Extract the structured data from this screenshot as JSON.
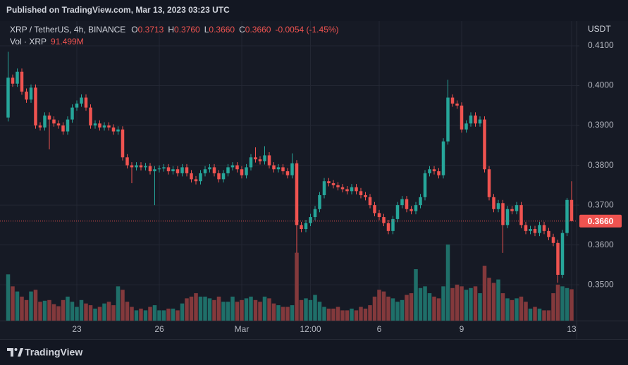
{
  "chart_data": {
    "type": "candlestick",
    "published": "Published on TradingView.com, Mar 13, 2023 03:23 UTC",
    "symbol": "XRP / TetherUS, 4h, BINANCE",
    "legend_ohlc": {
      "o_key": "O",
      "o": "0.3713",
      "h_key": "H",
      "h": "0.3760",
      "l_key": "L",
      "l": "0.3660",
      "c_key": "C",
      "c": "0.3660",
      "change": "-0.0054 (-1.45%)"
    },
    "volume_title": "Vol · XRP",
    "volume_value_label": "91.499M",
    "currency": "USDT",
    "brand": "TradingView",
    "up_color": "#26a69a",
    "down_color": "#ef5350",
    "volume_up_color": "#1f6f69",
    "volume_down_color": "#83393c",
    "grid": true,
    "categories": [
      null,
      null,
      null,
      null,
      null,
      null,
      null,
      null,
      null,
      null,
      null,
      null,
      null,
      null,
      null,
      "23",
      null,
      null,
      null,
      null,
      null,
      null,
      null,
      null,
      null,
      null,
      null,
      null,
      null,
      null,
      null,
      null,
      null,
      "26",
      null,
      null,
      null,
      null,
      null,
      null,
      null,
      null,
      null,
      null,
      null,
      null,
      null,
      null,
      null,
      null,
      null,
      "Mar",
      null,
      null,
      null,
      null,
      null,
      null,
      null,
      null,
      null,
      null,
      null,
      null,
      null,
      null,
      "12:00",
      null,
      null,
      null,
      null,
      null,
      null,
      null,
      null,
      null,
      null,
      null,
      null,
      null,
      null,
      "6",
      null,
      null,
      null,
      null,
      null,
      null,
      null,
      null,
      null,
      null,
      null,
      null,
      null,
      null,
      null,
      null,
      null,
      "9",
      null,
      null,
      null,
      null,
      null,
      null,
      null,
      null,
      null,
      null,
      null,
      null,
      null,
      null,
      null,
      null,
      null,
      null,
      null,
      null,
      null,
      null,
      null,
      "13"
    ],
    "open": [
      0.392,
      0.402,
      0.4005,
      0.4035,
      0.3985,
      0.3965,
      0.3995,
      0.39,
      0.3895,
      0.3925,
      0.3915,
      0.3905,
      0.39,
      0.3885,
      0.3915,
      0.3945,
      0.3955,
      0.397,
      0.3945,
      0.39,
      0.3905,
      0.3895,
      0.39,
      0.3895,
      0.3885,
      0.389,
      0.382,
      0.38,
      0.3795,
      0.38,
      0.3795,
      0.3798,
      0.3785,
      0.379,
      0.3792,
      0.3795,
      0.3785,
      0.379,
      0.378,
      0.3795,
      0.378,
      0.3765,
      0.376,
      0.378,
      0.379,
      0.3795,
      0.378,
      0.3765,
      0.378,
      0.3795,
      0.38,
      0.379,
      0.3775,
      0.3795,
      0.382,
      0.3815,
      0.381,
      0.3825,
      0.38,
      0.379,
      0.3795,
      0.3785,
      0.3775,
      0.3805,
      0.365,
      0.364,
      0.3655,
      0.367,
      0.369,
      0.3725,
      0.376,
      0.3755,
      0.375,
      0.3745,
      0.374,
      0.3735,
      0.3745,
      0.3735,
      0.3725,
      0.372,
      0.37,
      0.368,
      0.367,
      0.3655,
      0.3635,
      0.3665,
      0.37,
      0.3715,
      0.369,
      0.3685,
      0.37,
      0.372,
      0.378,
      0.379,
      0.3785,
      0.3775,
      0.386,
      0.397,
      0.3955,
      0.395,
      0.389,
      0.3905,
      0.3925,
      0.3905,
      0.3915,
      0.379,
      0.372,
      0.369,
      0.3705,
      0.365,
      0.369,
      0.3685,
      0.37,
      0.365,
      0.3635,
      0.364,
      0.363,
      0.365,
      0.3635,
      0.362,
      0.3605,
      0.3525,
      0.363,
      0.3713
    ],
    "high": [
      0.4085,
      0.4028,
      0.4043,
      0.4043,
      0.3993,
      0.4003,
      0.4003,
      0.3908,
      0.3933,
      0.3933,
      0.3923,
      0.3913,
      0.3908,
      0.3923,
      0.3953,
      0.3963,
      0.3978,
      0.3978,
      0.3953,
      0.3913,
      0.3913,
      0.3908,
      0.3908,
      0.3903,
      0.3898,
      0.3898,
      0.3828,
      0.3808,
      0.3808,
      0.3808,
      0.3806,
      0.3806,
      0.3798,
      0.38,
      0.3803,
      0.3803,
      0.3798,
      0.3798,
      0.3803,
      0.3803,
      0.3788,
      0.3773,
      0.3788,
      0.3798,
      0.3803,
      0.3803,
      0.3788,
      0.3788,
      0.3803,
      0.3808,
      0.3808,
      0.3798,
      0.3803,
      0.3828,
      0.3845,
      0.3823,
      0.3848,
      0.3833,
      0.3808,
      0.3803,
      0.3803,
      0.3793,
      0.383,
      0.3813,
      0.3658,
      0.3663,
      0.3678,
      0.3698,
      0.3733,
      0.3768,
      0.3768,
      0.3763,
      0.3758,
      0.3753,
      0.3748,
      0.3753,
      0.3753,
      0.3743,
      0.3733,
      0.3728,
      0.3708,
      0.3688,
      0.3678,
      0.3663,
      0.3673,
      0.3708,
      0.3723,
      0.3723,
      0.3698,
      0.3708,
      0.3728,
      0.3788,
      0.3798,
      0.3798,
      0.3793,
      0.3868,
      0.4015,
      0.3978,
      0.3963,
      0.3958,
      0.3913,
      0.3933,
      0.3933,
      0.3923,
      0.3923,
      0.3798,
      0.3728,
      0.3713,
      0.3713,
      0.3698,
      0.3698,
      0.3708,
      0.3708,
      0.3658,
      0.3648,
      0.3648,
      0.3658,
      0.3658,
      0.3643,
      0.3628,
      0.3613,
      0.3638,
      0.3718,
      0.376
    ],
    "low": [
      0.391,
      0.3997,
      0.3997,
      0.3977,
      0.3957,
      0.3957,
      0.3892,
      0.3887,
      0.3887,
      0.384,
      0.3897,
      0.3892,
      0.3877,
      0.3877,
      0.3907,
      0.3937,
      0.3947,
      0.3937,
      0.3892,
      0.3892,
      0.3887,
      0.3887,
      0.3887,
      0.3877,
      0.3877,
      0.3812,
      0.3792,
      0.3755,
      0.3787,
      0.3787,
      0.3787,
      0.3777,
      0.37,
      0.3782,
      0.3784,
      0.3777,
      0.3777,
      0.3772,
      0.3772,
      0.3772,
      0.3757,
      0.3752,
      0.3752,
      0.3772,
      0.3782,
      0.3772,
      0.3757,
      0.3757,
      0.3772,
      0.3787,
      0.3782,
      0.3767,
      0.3767,
      0.3787,
      0.3807,
      0.3802,
      0.3802,
      0.3792,
      0.3782,
      0.3782,
      0.3777,
      0.3767,
      0.3767,
      0.358,
      0.3632,
      0.3632,
      0.3647,
      0.3662,
      0.3682,
      0.3717,
      0.3747,
      0.3742,
      0.3737,
      0.3732,
      0.3727,
      0.3727,
      0.3727,
      0.3717,
      0.3712,
      0.3692,
      0.3672,
      0.3662,
      0.3647,
      0.3627,
      0.3627,
      0.3657,
      0.3692,
      0.3682,
      0.3677,
      0.3677,
      0.3692,
      0.3712,
      0.3772,
      0.3777,
      0.3767,
      0.3767,
      0.3852,
      0.3947,
      0.3942,
      0.3882,
      0.3882,
      0.3897,
      0.3897,
      0.3897,
      0.3782,
      0.3712,
      0.3682,
      0.3682,
      0.358,
      0.3642,
      0.3677,
      0.3677,
      0.3642,
      0.3627,
      0.3627,
      0.3622,
      0.3622,
      0.3627,
      0.3612,
      0.3597,
      0.3505,
      0.3517,
      0.3622,
      0.366
    ],
    "close": [
      0.402,
      0.4005,
      0.4035,
      0.3985,
      0.3965,
      0.3995,
      0.39,
      0.3895,
      0.3925,
      0.3915,
      0.3905,
      0.39,
      0.3885,
      0.3915,
      0.3945,
      0.3955,
      0.397,
      0.3945,
      0.39,
      0.3905,
      0.3895,
      0.39,
      0.3895,
      0.3885,
      0.389,
      0.382,
      0.38,
      0.3795,
      0.38,
      0.3795,
      0.3798,
      0.3785,
      0.379,
      0.3792,
      0.3795,
      0.3785,
      0.379,
      0.378,
      0.3795,
      0.378,
      0.3765,
      0.376,
      0.378,
      0.379,
      0.3795,
      0.378,
      0.3765,
      0.378,
      0.3795,
      0.38,
      0.379,
      0.3775,
      0.3795,
      0.382,
      0.3815,
      0.381,
      0.3825,
      0.38,
      0.379,
      0.3795,
      0.3785,
      0.3775,
      0.3805,
      0.365,
      0.364,
      0.3655,
      0.367,
      0.369,
      0.3725,
      0.376,
      0.3755,
      0.375,
      0.3745,
      0.374,
      0.3735,
      0.3745,
      0.3735,
      0.3725,
      0.372,
      0.37,
      0.368,
      0.367,
      0.3655,
      0.3635,
      0.3665,
      0.37,
      0.3715,
      0.369,
      0.3685,
      0.37,
      0.372,
      0.378,
      0.379,
      0.3785,
      0.3775,
      0.386,
      0.397,
      0.3955,
      0.395,
      0.389,
      0.3905,
      0.3925,
      0.3905,
      0.3915,
      0.379,
      0.372,
      0.369,
      0.3705,
      0.365,
      0.369,
      0.3685,
      0.37,
      0.365,
      0.3635,
      0.364,
      0.363,
      0.365,
      0.3635,
      0.362,
      0.3605,
      0.3525,
      0.363,
      0.3713,
      0.366
    ],
    "volume": [
      135,
      100,
      85,
      70,
      60,
      85,
      90,
      55,
      58,
      60,
      48,
      42,
      60,
      70,
      55,
      40,
      60,
      50,
      45,
      35,
      40,
      50,
      55,
      45,
      100,
      90,
      55,
      40,
      30,
      35,
      30,
      40,
      45,
      30,
      30,
      35,
      35,
      30,
      50,
      65,
      70,
      80,
      70,
      70,
      65,
      60,
      70,
      55,
      55,
      70,
      55,
      60,
      65,
      70,
      60,
      55,
      70,
      65,
      50,
      45,
      40,
      40,
      45,
      198,
      60,
      65,
      60,
      75,
      55,
      40,
      35,
      35,
      40,
      30,
      30,
      35,
      30,
      40,
      35,
      45,
      70,
      90,
      85,
      70,
      65,
      55,
      60,
      75,
      80,
      150,
      95,
      100,
      80,
      70,
      65,
      100,
      222,
      95,
      105,
      100,
      90,
      95,
      100,
      80,
      160,
      125,
      110,
      120,
      80,
      65,
      60,
      65,
      70,
      55,
      35,
      40,
      35,
      30,
      30,
      80,
      105,
      100,
      95,
      91.499
    ],
    "last_price": {
      "value": 0.366,
      "label": "0.3660"
    },
    "ylim": [
      0.341,
      0.4162
    ],
    "yticks": [
      {
        "value": 0.35,
        "label": "0.3500"
      },
      {
        "value": 0.36,
        "label": "0.3600"
      },
      {
        "value": 0.37,
        "label": "0.3700"
      },
      {
        "value": 0.38,
        "label": "0.3800"
      },
      {
        "value": 0.39,
        "label": "0.3900"
      },
      {
        "value": 0.4,
        "label": "0.4000"
      },
      {
        "value": 0.41,
        "label": "0.4100"
      }
    ]
  }
}
